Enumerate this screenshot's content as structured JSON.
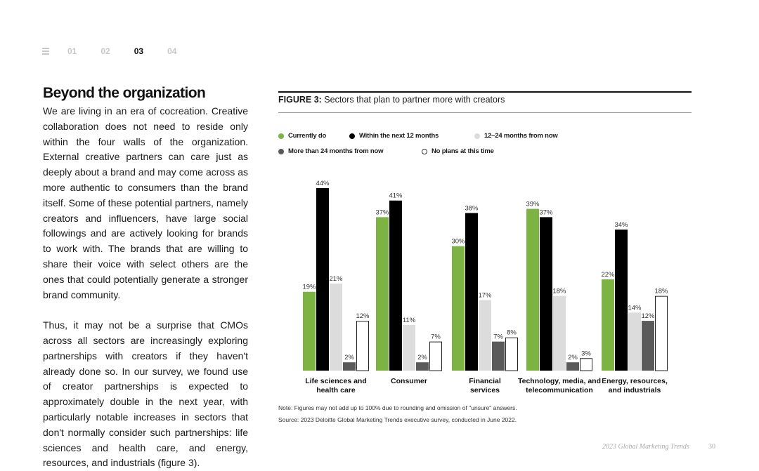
{
  "nav": {
    "items": [
      "01",
      "02",
      "03",
      "04"
    ],
    "active_index": 2,
    "menu_icon": "hamburger-icon"
  },
  "article": {
    "heading": "Beyond the organization",
    "paragraphs": [
      "We are living in an era of cocreation. Creative collaboration does not need to reside only within the four walls of the organization. External creative partners can care just as deeply about a brand and may come across as more authentic to consumers than the brand itself. Some of these potential partners, namely creators and influencers, have large social followings and are actively looking for brands to work with. The brands that are willing to share their voice with select others are the ones that could potentially generate a stronger brand community.",
      "Thus, it may not be a surprise that CMOs across all sectors are increasingly exploring partnerships with creators if they haven't already done so. In our survey, we found use of creator partnerships is expected to approximately double in the next year, with particularly notable increases in sectors that don't normally consider such partnerships: life sciences and health care, and energy, resources, and industrials (figure 3)."
    ]
  },
  "figure": {
    "label": "FIGURE 3:",
    "title": "Sectors that plan to partner more with creators",
    "note": "Note: Figures may not add up to 100% due to rounding and omission of \"unsure\" answers.",
    "source": "Source: 2023 Deloitte Global Marketing Trends executive survey, conducted in June 2022."
  },
  "chart_data": {
    "type": "bar",
    "categories": [
      [
        "Life sciences and",
        "health care"
      ],
      [
        "Consumer"
      ],
      [
        "Financial",
        "services"
      ],
      [
        "Technology, media, and",
        "telecommunication"
      ],
      [
        "Energy, resources,",
        "and industrials"
      ]
    ],
    "series": [
      {
        "name": "Currently do",
        "color": "#7cb342",
        "values": [
          19,
          37,
          30,
          39,
          22
        ]
      },
      {
        "name": "Within the next 12 months",
        "color": "#000000",
        "values": [
          44,
          41,
          38,
          37,
          34
        ]
      },
      {
        "name": "12–24 months from now",
        "color": "#dcdcdc",
        "values": [
          21,
          11,
          17,
          18,
          14
        ]
      },
      {
        "name": "More than 24 months from now",
        "color": "#5a5a5a",
        "values": [
          2,
          2,
          7,
          2,
          12
        ]
      },
      {
        "name": "No plans at this time",
        "color": "#ffffff",
        "values": [
          12,
          7,
          8,
          3,
          18
        ]
      }
    ],
    "value_suffix": "%",
    "legend_position": "top",
    "grid": false,
    "ylim": [
      0,
      44
    ]
  },
  "footer": {
    "publication": "2023 Global Marketing Trends",
    "page_number": "30"
  }
}
